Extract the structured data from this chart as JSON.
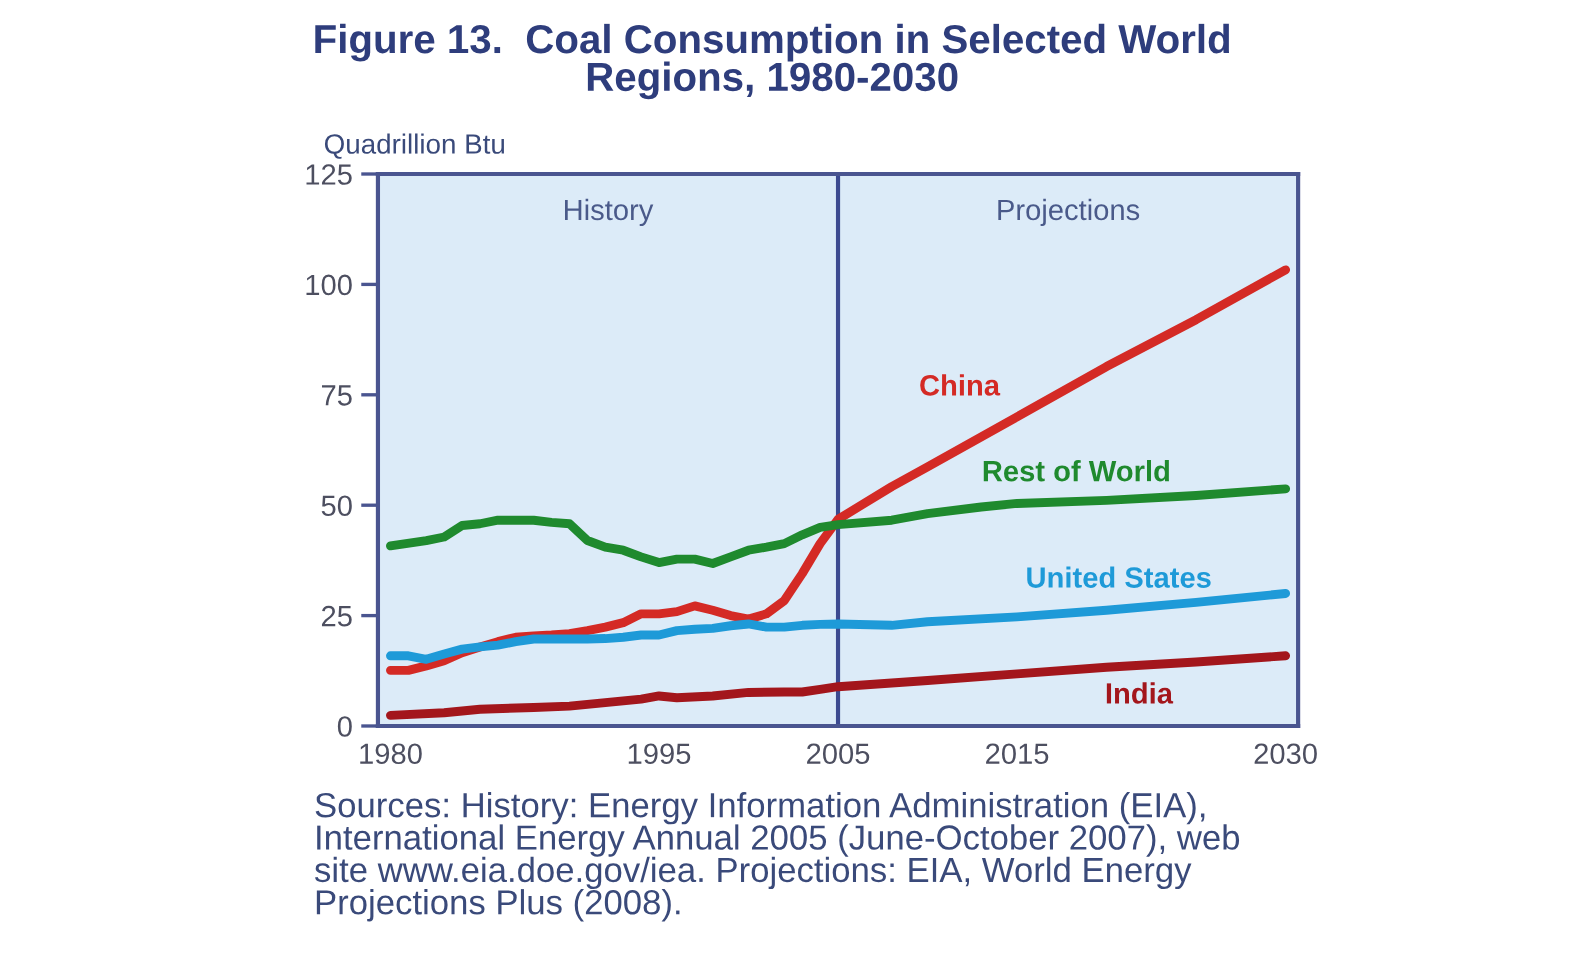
{
  "chart_data": {
    "type": "line",
    "title": "Figure 13.  Coal Consumption in Selected World\nRegions, 1980-2030",
    "ylabel": "Quadrillion Btu",
    "xlim": [
      1979.3,
      2030.7
    ],
    "xticks": [
      1980,
      1995,
      2005,
      2015,
      2030
    ],
    "ylim": [
      0,
      125
    ],
    "yticks": [
      0,
      25,
      50,
      75,
      100,
      125
    ],
    "series": [
      {
        "name": "China",
        "color": "#d42a25",
        "x": [
          1980,
          1981,
          1982,
          1983,
          1984,
          1985,
          1986,
          1987,
          1988,
          1989,
          1990,
          1991,
          1992,
          1993,
          1994,
          1995,
          1996,
          1997,
          1998,
          1999,
          2000,
          2001,
          2002,
          2003,
          2004,
          2005,
          2008,
          2010,
          2015,
          2020,
          2025,
          2030
        ],
        "values": [
          12.6,
          12.6,
          13.6,
          14.8,
          16.6,
          17.9,
          19.1,
          20.1,
          20.4,
          20.6,
          20.9,
          21.6,
          22.4,
          23.4,
          25.4,
          25.4,
          25.9,
          27.2,
          26.2,
          25.0,
          24.2,
          25.4,
          28.4,
          34.5,
          41.3,
          46.8,
          54.2,
          58.7,
          70.0,
          81.4,
          92.0,
          103.3
        ]
      },
      {
        "name": "Rest of World",
        "color": "#1f8a2e",
        "x": [
          1980,
          1982,
          1983,
          1984,
          1985,
          1986,
          1988,
          1989,
          1990,
          1991,
          1992,
          1993,
          1994,
          1995,
          1996,
          1997,
          1998,
          1999,
          2000,
          2001,
          2002,
          2003,
          2004,
          2005,
          2008,
          2010,
          2013,
          2015,
          2020,
          2025,
          2030
        ],
        "values": [
          40.8,
          42.0,
          42.8,
          45.4,
          45.8,
          46.6,
          46.6,
          46.1,
          45.8,
          42.0,
          40.5,
          39.8,
          38.3,
          37.0,
          37.8,
          37.8,
          36.8,
          38.3,
          39.8,
          40.5,
          41.3,
          43.3,
          45.0,
          45.6,
          46.6,
          48.1,
          49.6,
          50.4,
          51.1,
          52.2,
          53.7
        ]
      },
      {
        "name": "United States",
        "color": "#1e9ad8",
        "x": [
          1980,
          1981,
          1982,
          1983,
          1984,
          1985,
          1986,
          1987,
          1988,
          1989,
          1990,
          1991,
          1992,
          1993,
          1994,
          1995,
          1996,
          1997,
          1998,
          1999,
          2000,
          2001,
          2002,
          2003,
          2004,
          2005,
          2008,
          2010,
          2015,
          2020,
          2025,
          2030
        ],
        "values": [
          15.9,
          15.9,
          15.1,
          16.3,
          17.4,
          17.9,
          18.3,
          19.1,
          19.7,
          19.7,
          19.7,
          19.7,
          19.8,
          20.1,
          20.6,
          20.6,
          21.6,
          21.9,
          22.1,
          22.7,
          23.1,
          22.4,
          22.4,
          22.8,
          23.0,
          23.1,
          22.8,
          23.6,
          24.7,
          26.2,
          28.0,
          30.0
        ]
      },
      {
        "name": "India",
        "color": "#a3161c",
        "x": [
          1980,
          1983,
          1985,
          1988,
          1990,
          1992,
          1994,
          1995,
          1996,
          1998,
          2000,
          2002,
          2003,
          2004,
          2005,
          2010,
          2015,
          2020,
          2025,
          2030
        ],
        "values": [
          2.4,
          3.0,
          3.8,
          4.2,
          4.5,
          5.3,
          6.1,
          6.8,
          6.4,
          6.8,
          7.6,
          7.7,
          7.7,
          8.3,
          8.9,
          10.3,
          11.8,
          13.3,
          14.5,
          15.9
        ]
      }
    ],
    "bands": [
      {
        "axis": "x",
        "from": 1979.3,
        "to": 2005,
        "label": "History",
        "color": "#dcebf8"
      },
      {
        "axis": "x",
        "from": 2005,
        "to": 2030.7,
        "label": "Projections",
        "color": "#dcebf8"
      }
    ],
    "ref_lines": [
      {
        "axis": "x",
        "value": 2005,
        "color": "#3c4a90",
        "line_style": "solid"
      }
    ],
    "annotations": [
      "Sources: History: Energy Information Administration (EIA),\nInternational Energy Annual 2005 (June-October 2007), web\nsite www.eia.doe.gov/iea. Projections: EIA, World Energy\nProjections Plus (2008)."
    ]
  }
}
